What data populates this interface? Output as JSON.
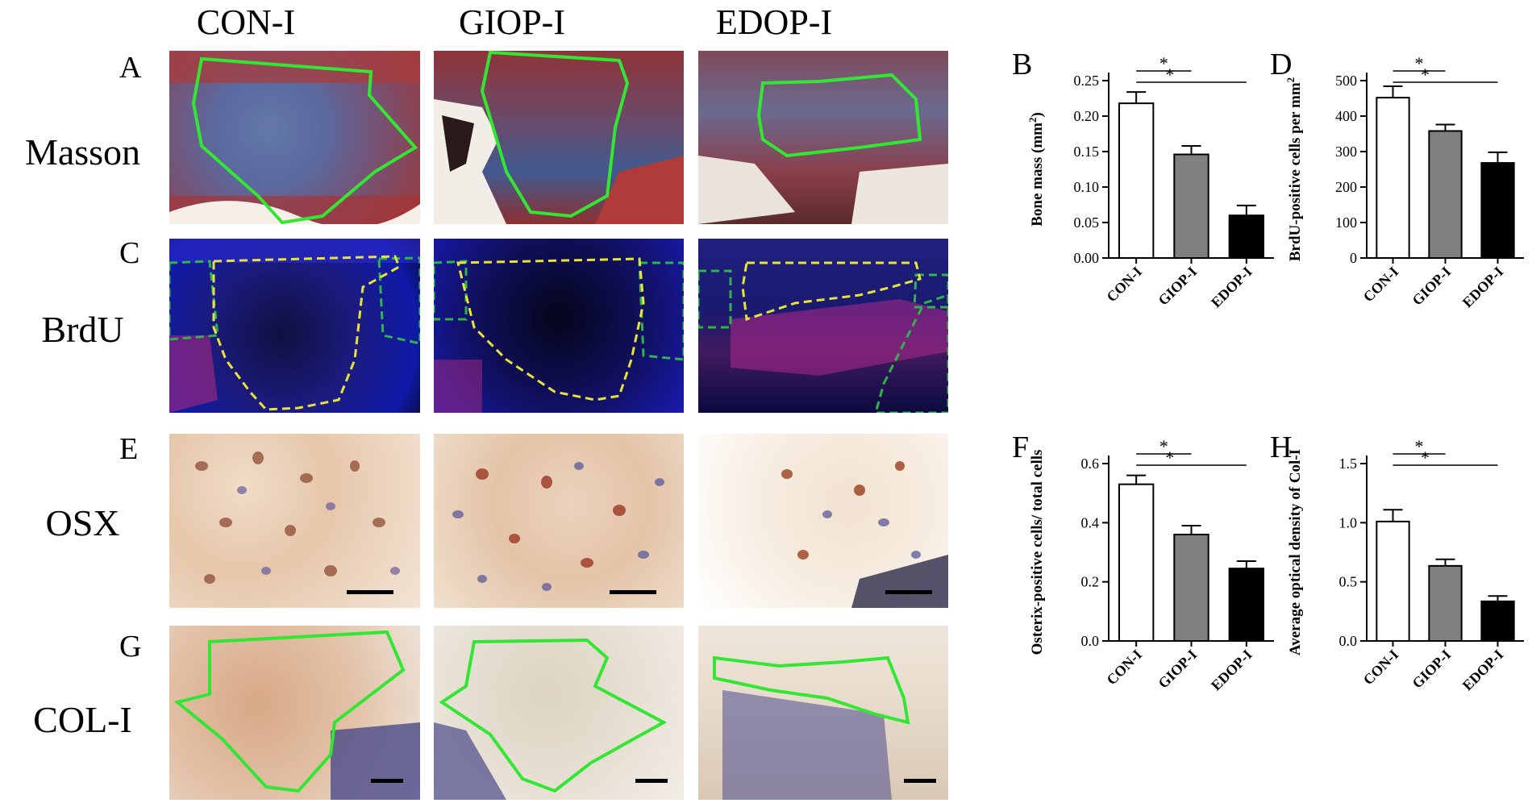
{
  "columns": [
    "CON-I",
    "GIOP-I",
    "EDOP-I"
  ],
  "rows": [
    {
      "letter": "A",
      "label": "Masson"
    },
    {
      "letter": "C",
      "label": "BrdU"
    },
    {
      "letter": "E",
      "label": "OSX"
    },
    {
      "letter": "G",
      "label": "COL-I"
    }
  ],
  "colors": {
    "con": "#ffffff",
    "giop": "#808080",
    "edop": "#000000",
    "outline_green": "#33e633",
    "dash_yellow": "#e8e23a",
    "dash_green": "#2fb34a"
  },
  "chart_data": [
    {
      "letter": "B",
      "type": "bar",
      "categories": [
        "CON-I",
        "GIOP-I",
        "EDOP-I"
      ],
      "values": [
        0.218,
        0.146,
        0.06
      ],
      "errors": [
        0.016,
        0.012,
        0.014
      ],
      "ylabel_main": "Bone mass (mm",
      "ylabel_sup": "2",
      "ylabel_tail": ")",
      "ylim": [
        0,
        0.25
      ],
      "yticks": [
        "0.00",
        "0.05",
        "0.10",
        "0.15",
        "0.20",
        "0.25"
      ],
      "sig": [
        {
          "from": 0,
          "to": 1,
          "label": "*"
        },
        {
          "from": 0,
          "to": 2,
          "label": "*"
        }
      ]
    },
    {
      "letter": "D",
      "type": "bar",
      "categories": [
        "CON-I",
        "GIOP-I",
        "EDOP-I"
      ],
      "values": [
        452,
        358,
        268
      ],
      "errors": [
        32,
        18,
        30
      ],
      "ylabel_main": "BrdU-positive cells per mm",
      "ylabel_sup": "2",
      "ylabel_tail": "",
      "ylim": [
        0,
        500
      ],
      "yticks": [
        "0",
        "100",
        "200",
        "300",
        "400",
        "500"
      ],
      "sig": [
        {
          "from": 0,
          "to": 1,
          "label": "*"
        },
        {
          "from": 0,
          "to": 2,
          "label": "*"
        }
      ]
    },
    {
      "letter": "F",
      "type": "bar",
      "categories": [
        "CON-I",
        "GIOP-I",
        "EDOP-I"
      ],
      "values": [
        0.53,
        0.36,
        0.245
      ],
      "errors": [
        0.03,
        0.03,
        0.025
      ],
      "ylabel_main": "Osterix-positive cells/ total cells",
      "ylabel_sup": "",
      "ylabel_tail": "",
      "ylim": [
        0,
        0.6
      ],
      "yticks": [
        "0.0",
        "0.2",
        "0.4",
        "0.6"
      ],
      "sig": [
        {
          "from": 0,
          "to": 1,
          "label": "*"
        },
        {
          "from": 0,
          "to": 2,
          "label": "*"
        }
      ]
    },
    {
      "letter": "H",
      "type": "bar",
      "categories": [
        "CON-I",
        "GIOP-I",
        "EDOP-I"
      ],
      "values": [
        1.01,
        0.635,
        0.335
      ],
      "errors": [
        0.1,
        0.055,
        0.045
      ],
      "ylabel_main": "Average optical density of Col-I",
      "ylabel_sup": "",
      "ylabel_tail": "",
      "ylim": [
        0,
        1.5
      ],
      "yticks": [
        "0.0",
        "0.5",
        "1.0",
        "1.5"
      ],
      "sig": [
        {
          "from": 0,
          "to": 1,
          "label": "*"
        },
        {
          "from": 0,
          "to": 2,
          "label": "*"
        }
      ]
    }
  ]
}
